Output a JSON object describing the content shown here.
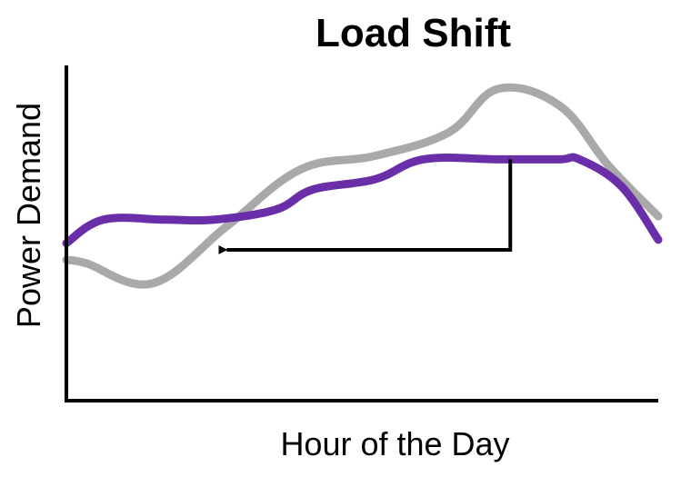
{
  "chart_data": {
    "type": "line",
    "title": "Load Shift",
    "xlabel": "Hour of the Day",
    "ylabel": "Power Demand",
    "xlim": [
      0,
      24
    ],
    "ylim": [
      0,
      100
    ],
    "grid": false,
    "legend": "none",
    "series": [
      {
        "color": "#a9a9a9",
        "x": [
          0,
          0.8,
          3.5,
          6.5,
          9.5,
          12.5,
          15.5,
          17.5,
          20,
          22,
          24
        ],
        "y": [
          42,
          41,
          35,
          52,
          69,
          73,
          80,
          93,
          88,
          70,
          55
        ]
      },
      {
        "color": "#6a2fa8",
        "x": [
          0,
          1.5,
          4,
          6,
          8.5,
          10,
          12.5,
          14.5,
          17.5,
          20,
          20.8,
          22.5,
          24
        ],
        "y": [
          47,
          54,
          54,
          54,
          57,
          63,
          66,
          72,
          72,
          72,
          72,
          64,
          48
        ]
      }
    ],
    "annotations": [
      {
        "type": "arrow",
        "color": "#000000",
        "points": [
          [
            18,
            72
          ],
          [
            18,
            45
          ],
          [
            6.5,
            45
          ]
        ]
      }
    ]
  }
}
